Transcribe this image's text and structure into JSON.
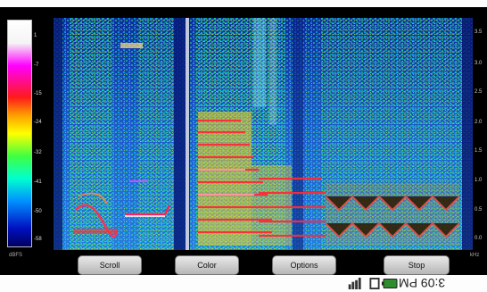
{
  "colorbar": {
    "unit": "dBFS",
    "ticks": [
      "1",
      "-7",
      "-15",
      "-24",
      "-32",
      "-41",
      "-50",
      "-58"
    ]
  },
  "frequency_axis": {
    "unit": "kHz",
    "ticks": [
      "3.5",
      "3.0",
      "2.5",
      "2.0",
      "1.5",
      "1.0",
      "0.5",
      "0.0"
    ]
  },
  "buttons": {
    "scroll": "Scroll",
    "color": "Color",
    "options": "Options",
    "stop": "Stop"
  },
  "status_bar": {
    "time": "3:09 PM",
    "icons": [
      "battery-icon",
      "signal-icon",
      "notification-icon"
    ]
  },
  "colors": {
    "background": "#000000",
    "button_top": "#e9e9e9",
    "button_bottom": "#b6b6b6"
  }
}
